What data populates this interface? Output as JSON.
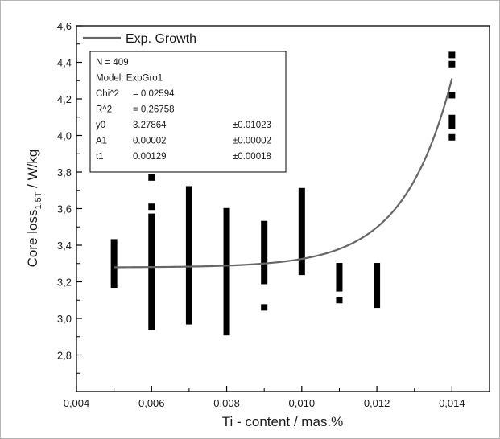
{
  "chart_data": {
    "type": "scatter",
    "xlabel": "Ti - content / mas.%",
    "ylabel_main": "Core loss",
    "ylabel_sub": "1,5T",
    "ylabel_unit": " / W/kg",
    "xlim": [
      0.004,
      0.015
    ],
    "ylim": [
      2.6,
      4.6
    ],
    "xticks": [
      {
        "value": 0.004,
        "label": "0,004"
      },
      {
        "value": 0.006,
        "label": "0,006"
      },
      {
        "value": 0.008,
        "label": "0,008"
      },
      {
        "value": 0.01,
        "label": "0,010"
      },
      {
        "value": 0.012,
        "label": "0,012"
      },
      {
        "value": 0.014,
        "label": "0,014"
      }
    ],
    "yticks": [
      {
        "value": 2.8,
        "label": "2,8"
      },
      {
        "value": 3.0,
        "label": "3,0"
      },
      {
        "value": 3.2,
        "label": "3,2"
      },
      {
        "value": 3.4,
        "label": "3,4"
      },
      {
        "value": 3.6,
        "label": "3,6"
      },
      {
        "value": 3.8,
        "label": "3,8"
      },
      {
        "value": 4.0,
        "label": "4,0"
      },
      {
        "value": 4.2,
        "label": "4,2"
      },
      {
        "value": 4.4,
        "label": "4,4"
      },
      {
        "value": 4.6,
        "label": "4,6"
      }
    ],
    "legend": {
      "label": "Exp. Growth",
      "position": "top-left"
    },
    "series": [
      {
        "markers": "square",
        "color": "#000000",
        "columns": [
          {
            "x": 0.005,
            "y_min": 3.18,
            "y_max": 3.42,
            "isolated": []
          },
          {
            "x": 0.006,
            "y_min": 2.95,
            "y_max": 3.56,
            "isolated": [
              3.61,
              3.77
            ]
          },
          {
            "x": 0.007,
            "y_min": 2.98,
            "y_max": 3.71,
            "isolated": []
          },
          {
            "x": 0.008,
            "y_min": 2.92,
            "y_max": 3.59,
            "isolated": []
          },
          {
            "x": 0.009,
            "y_min": 3.2,
            "y_max": 3.52,
            "isolated": [
              3.06
            ]
          },
          {
            "x": 0.01,
            "y_min": 3.25,
            "y_max": 3.7,
            "isolated": []
          },
          {
            "x": 0.011,
            "y_min": 3.16,
            "y_max": 3.29,
            "isolated": [
              3.1
            ]
          },
          {
            "x": 0.012,
            "y_min": 3.07,
            "y_max": 3.29,
            "isolated": []
          },
          {
            "x": 0.014,
            "y_min": 4.05,
            "y_max": 4.1,
            "isolated": [
              3.99,
              4.22,
              4.39,
              4.44
            ]
          }
        ]
      },
      {
        "name": "Exp. Growth",
        "type": "line",
        "color": "#666666",
        "model": {
          "y0": 3.27864,
          "A1": 2e-05,
          "t1": 0.00129
        },
        "x_range": [
          0.005,
          0.014
        ]
      }
    ],
    "fit_box": [
      {
        "label": "N = 409",
        "value": "",
        "error": ""
      },
      {
        "label": "Model: ExpGro1",
        "value": "",
        "error": ""
      },
      {
        "label": "Chi^2",
        "value": "= 0.02594",
        "error": ""
      },
      {
        "label": "R^2",
        "value": "= 0.26758",
        "error": ""
      },
      {
        "label": "y0",
        "value": "3.27864",
        "error": "±0.01023"
      },
      {
        "label": "A1",
        "value": "0.00002",
        "error": "±0.00002"
      },
      {
        "label": "t1",
        "value": "0.00129",
        "error": "±0.00018"
      }
    ]
  }
}
